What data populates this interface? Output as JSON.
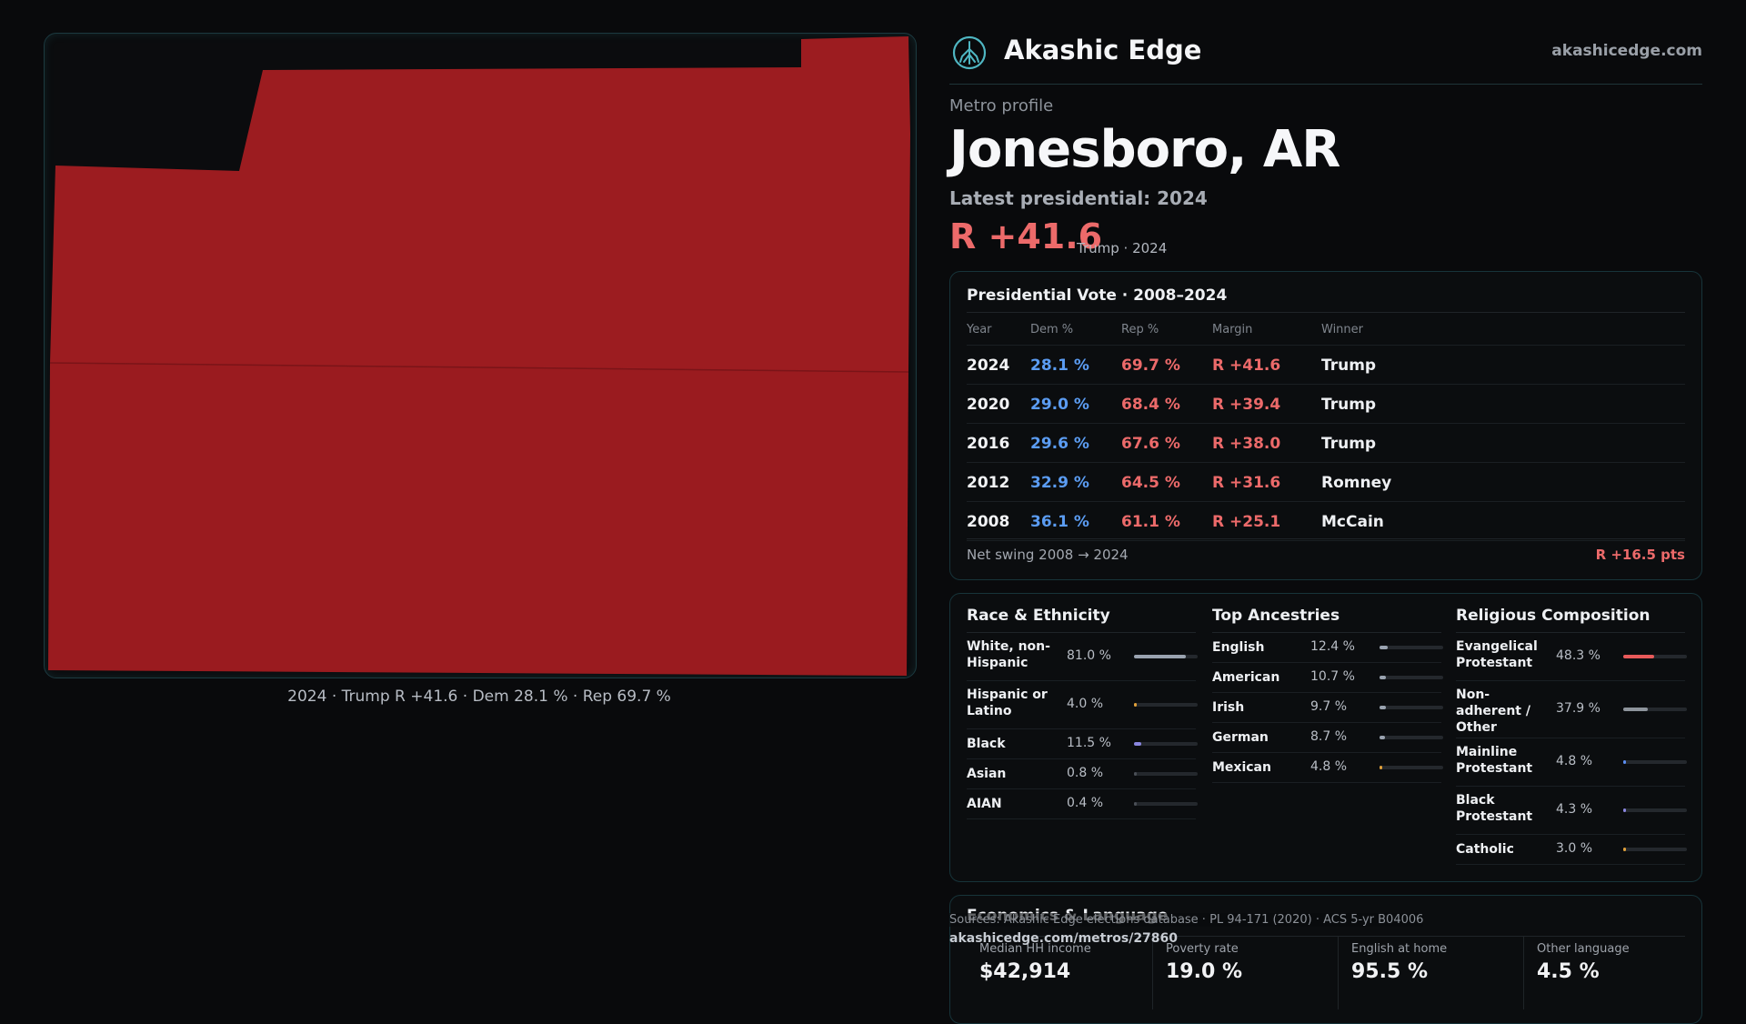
{
  "map": {
    "caption": "2024 · Trump R +41.6 · Dem 28.1 % · Rep 69.7 %",
    "fill_color": "#9c1c20"
  },
  "brand": {
    "name": "Akashic Edge",
    "url": "akashicedge.com",
    "logo_icon": "akashic-tree-icon"
  },
  "profile": {
    "eyebrow": "Metro profile",
    "title": "Jonesboro, AR",
    "latest_label": "Latest presidential: 2024",
    "margin": "R +41.6",
    "margin_sub": "Trump · 2024"
  },
  "vote": {
    "title": "Presidential Vote · 2008–2024",
    "headers": {
      "year": "Year",
      "dem": "Dem %",
      "rep": "Rep %",
      "margin": "Margin",
      "winner": "Winner"
    },
    "rows": [
      {
        "year": "2024",
        "dem": "28.1 %",
        "rep": "69.7 %",
        "margin": "R +41.6",
        "winner": "Trump"
      },
      {
        "year": "2020",
        "dem": "29.0 %",
        "rep": "68.4 %",
        "margin": "R +39.4",
        "winner": "Trump"
      },
      {
        "year": "2016",
        "dem": "29.6 %",
        "rep": "67.6 %",
        "margin": "R +38.0",
        "winner": "Trump"
      },
      {
        "year": "2012",
        "dem": "32.9 %",
        "rep": "64.5 %",
        "margin": "R +31.6",
        "winner": "Romney"
      },
      {
        "year": "2008",
        "dem": "36.1 %",
        "rep": "61.1 %",
        "margin": "R +25.1",
        "winner": "McCain"
      }
    ],
    "swing_label": "Net swing 2008 → 2024",
    "swing_value": "R +16.5 pts"
  },
  "race": {
    "title": "Race & Ethnicity",
    "items": [
      {
        "name": "White, non-Hispanic",
        "pct": "81.0 %",
        "share": 0.81,
        "color": "#9aa3b0"
      },
      {
        "name": "Hispanic or Latino",
        "pct": "4.0 %",
        "share": 0.04,
        "color": "#e0a03a"
      },
      {
        "name": "Black",
        "pct": "11.5 %",
        "share": 0.115,
        "color": "#8a86e0"
      },
      {
        "name": "Asian",
        "pct": "0.8 %",
        "share": 0.008,
        "color": "#4a4f56"
      },
      {
        "name": "AIAN",
        "pct": "0.4 %",
        "share": 0.004,
        "color": "#4a4f56"
      }
    ]
  },
  "ancestry": {
    "title": "Top Ancestries",
    "items": [
      {
        "name": "English",
        "pct": "12.4 %",
        "share": 0.124,
        "color": "#9aa3b0"
      },
      {
        "name": "American",
        "pct": "10.7 %",
        "share": 0.107,
        "color": "#9aa3b0"
      },
      {
        "name": "Irish",
        "pct": "9.7 %",
        "share": 0.097,
        "color": "#9aa3b0"
      },
      {
        "name": "German",
        "pct": "8.7 %",
        "share": 0.087,
        "color": "#9aa3b0"
      },
      {
        "name": "Mexican",
        "pct": "4.8 %",
        "share": 0.048,
        "color": "#e0a03a"
      }
    ]
  },
  "religion": {
    "title": "Religious Composition",
    "items": [
      {
        "name": "Evangelical Protestant",
        "pct": "48.3 %",
        "share": 0.483,
        "color": "#e85a5a"
      },
      {
        "name": "Non-adherent / Other",
        "pct": "37.9 %",
        "share": 0.379,
        "color": "#8e949c"
      },
      {
        "name": "Mainline Protestant",
        "pct": "4.8 %",
        "share": 0.048,
        "color": "#5b8ef2"
      },
      {
        "name": "Black Protestant",
        "pct": "4.3 %",
        "share": 0.043,
        "color": "#8a86e0"
      },
      {
        "name": "Catholic",
        "pct": "3.0 %",
        "share": 0.03,
        "color": "#e0a03a"
      }
    ]
  },
  "econ": {
    "title": "Economics & Language",
    "cells": [
      {
        "label": "Median HH income",
        "value": "$42,914"
      },
      {
        "label": "Poverty rate",
        "value": "19.0 %"
      },
      {
        "label": "English at home",
        "value": "95.5 %"
      },
      {
        "label": "Other language",
        "value": "4.5 %"
      }
    ]
  },
  "footer": {
    "sources": "Sources: Akashic Edge elections database · PL 94-171 (2020) · ACS 5-yr B04006",
    "permalink": "akashicedge.com/metros/27860"
  }
}
